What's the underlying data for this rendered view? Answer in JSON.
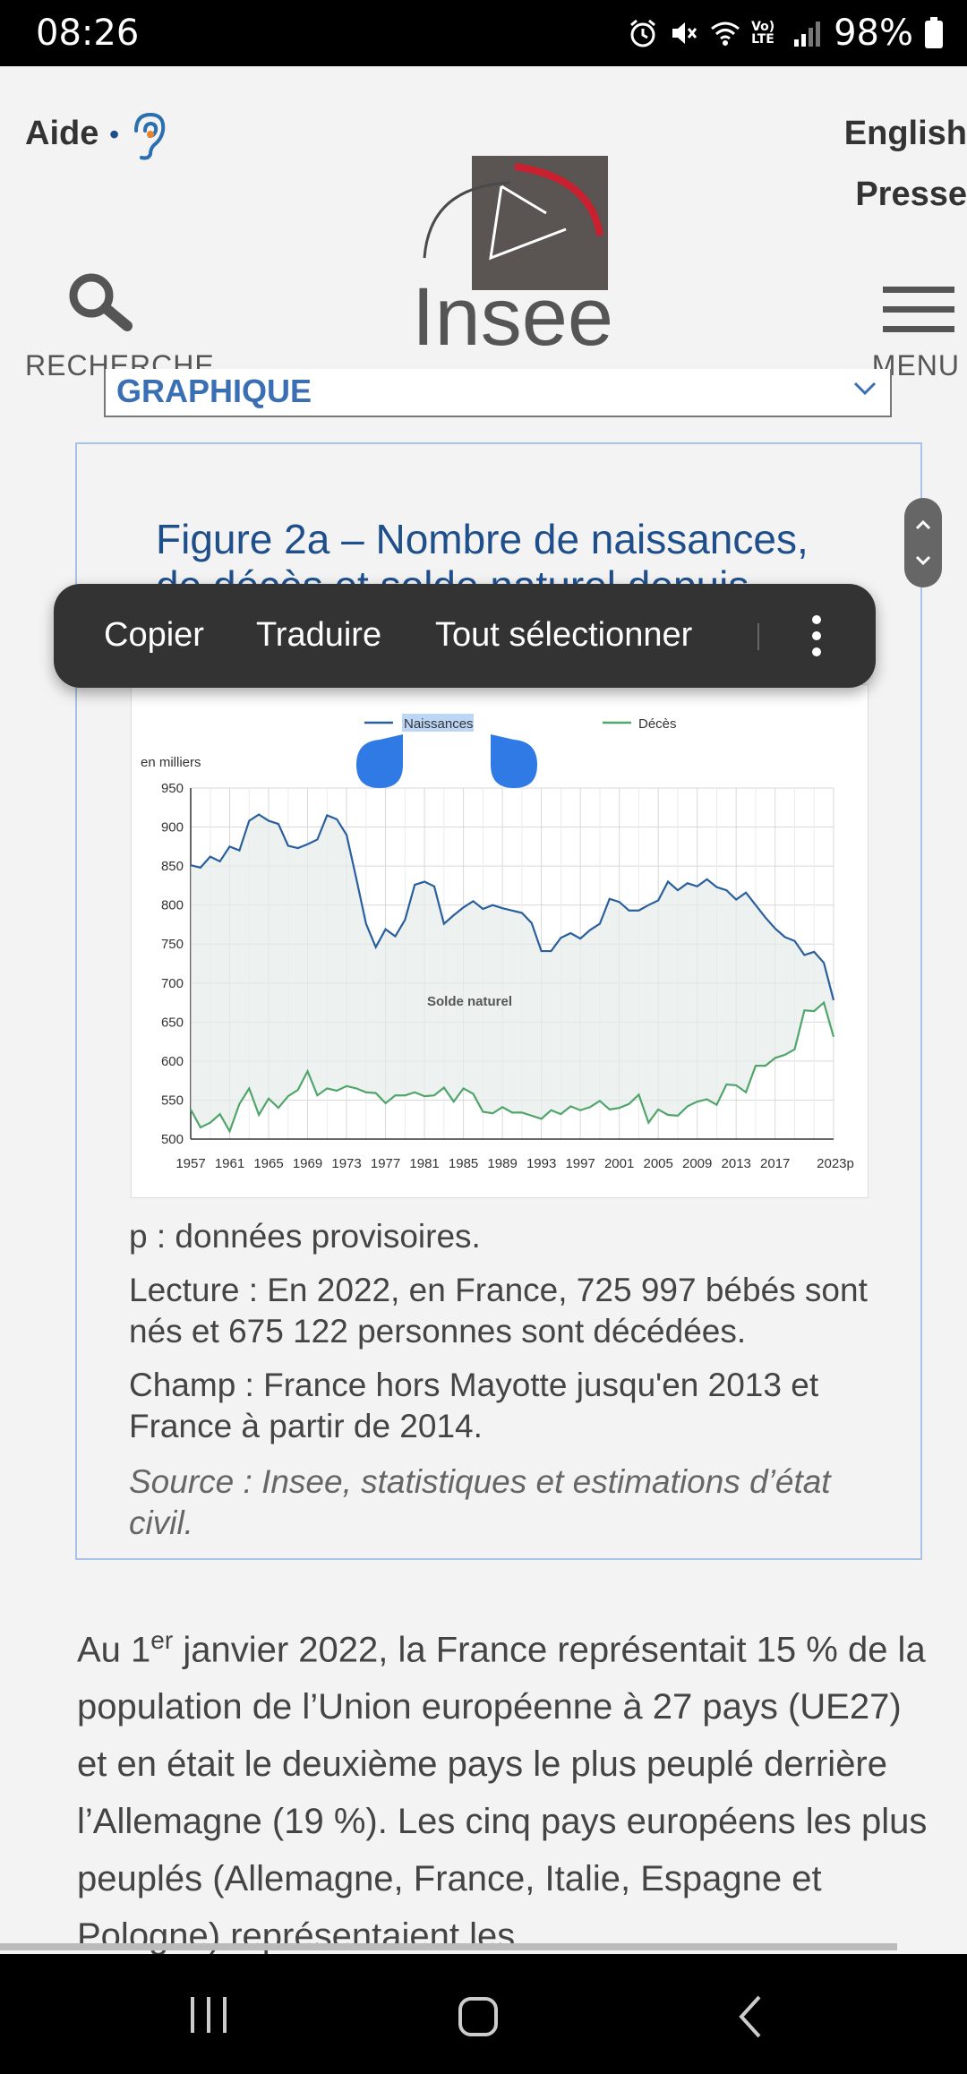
{
  "status_bar": {
    "time": "08:26",
    "battery": "98%",
    "icons": [
      "alarm-icon",
      "mute-icon",
      "wifi-icon",
      "volte-icon",
      "signal-icon",
      "battery-icon"
    ],
    "volte_text": "Vo) LTE"
  },
  "header": {
    "aide_label": "Aide",
    "english_link": "English",
    "presse_link": "Presse",
    "logo_text": "Insee",
    "search_label": "RECHERCHE",
    "menu_label": "MENU"
  },
  "graphique_select": {
    "value": "GRAPHIQUE"
  },
  "figure": {
    "title_line1": "Figure 2a – Nombre de naissances,",
    "title_line2": "de décès et solde naturel depuis"
  },
  "context_menu": {
    "items": [
      "Copier",
      "Traduire",
      "Tout sélectionner"
    ]
  },
  "chart_data": {
    "type": "line",
    "ylabel": "en milliers",
    "annotation": "Solde naturel",
    "ylim": [
      500,
      950
    ],
    "yticks": [
      "950",
      "900",
      "850",
      "800",
      "750",
      "700",
      "650",
      "600",
      "550",
      "500"
    ],
    "xticks": [
      "1957",
      "1961",
      "1965",
      "1969",
      "1973",
      "1977",
      "1981",
      "1985",
      "1989",
      "1993",
      "1997",
      "2001",
      "2005",
      "2009",
      "2013",
      "2017",
      "2023p"
    ],
    "x": [
      1957,
      1958,
      1959,
      1960,
      1961,
      1962,
      1963,
      1964,
      1965,
      1966,
      1967,
      1968,
      1969,
      1970,
      1971,
      1972,
      1973,
      1974,
      1975,
      1976,
      1977,
      1978,
      1979,
      1980,
      1981,
      1982,
      1983,
      1984,
      1985,
      1986,
      1987,
      1988,
      1989,
      1990,
      1991,
      1992,
      1993,
      1994,
      1995,
      1996,
      1997,
      1998,
      1999,
      2000,
      2001,
      2002,
      2003,
      2004,
      2005,
      2006,
      2007,
      2008,
      2009,
      2010,
      2011,
      2012,
      2013,
      2014,
      2015,
      2016,
      2017,
      2018,
      2019,
      2020,
      2021,
      2022,
      2023
    ],
    "series": [
      {
        "name": "Naissances",
        "color": "#2a5f9e",
        "values": [
          851,
          848,
          862,
          856,
          875,
          870,
          908,
          916,
          908,
          904,
          876,
          873,
          878,
          884,
          915,
          910,
          890,
          834,
          776,
          746,
          769,
          760,
          781,
          826,
          830,
          824,
          776,
          787,
          797,
          805,
          795,
          800,
          796,
          793,
          790,
          777,
          741,
          741,
          758,
          764,
          757,
          768,
          776,
          808,
          804,
          793,
          793,
          800,
          806,
          830,
          819,
          828,
          824,
          833,
          823,
          819,
          807,
          816,
          800,
          784,
          770,
          759,
          754,
          736,
          740,
          726,
          678
        ]
      },
      {
        "name": "Décès",
        "color": "#4fa56a",
        "values": [
          538,
          515,
          521,
          532,
          510,
          545,
          565,
          531,
          552,
          540,
          555,
          563,
          587,
          556,
          565,
          562,
          568,
          565,
          560,
          559,
          546,
          556,
          556,
          560,
          555,
          556,
          566,
          548,
          565,
          558,
          535,
          533,
          541,
          534,
          534,
          530,
          526,
          537,
          532,
          542,
          537,
          541,
          549,
          538,
          540,
          545,
          557,
          521,
          538,
          531,
          530,
          542,
          548,
          551,
          544,
          570,
          569,
          560,
          594,
          594,
          604,
          608,
          615,
          665,
          664,
          675,
          631
        ]
      }
    ]
  },
  "notes": {
    "provisional": "p : données provisoires.",
    "lecture": "Lecture : En 2022, en France, 725 997 bébés sont nés et 675 122 personnes sont décédées.",
    "champ": "Champ : France hors Mayotte jusqu'en 2013 et France à partir de 2014.",
    "source": "Source : Insee, statistiques et estimations d’état civil."
  },
  "paragraph": {
    "pre": "Au 1",
    "sup": "er",
    "text": " janvier 2022, la France représentait 15 % de la population de l’Union européenne à 27 pays (UE27) et en était le deuxième pays le plus peuplé derrière l’Allemagne (19 %). Les cinq pays européens les plus peuplés (Allemagne, France, Italie, Espagne et Pologne) représentaient les"
  },
  "nav_bar": {
    "icons": [
      "recent-apps-icon",
      "home-icon",
      "back-icon"
    ]
  }
}
